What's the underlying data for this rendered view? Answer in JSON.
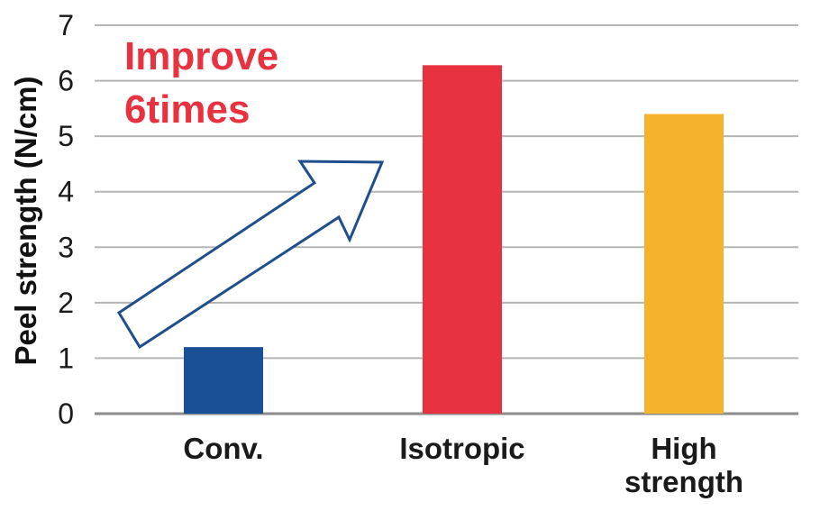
{
  "chart_data": {
    "type": "bar",
    "categories": [
      {
        "lines": [
          "Conv."
        ]
      },
      {
        "lines": [
          "Isotropic"
        ]
      },
      {
        "lines": [
          "High",
          "strength"
        ]
      }
    ],
    "values": [
      1.2,
      6.28,
      5.4
    ],
    "colors": [
      "#1a5096",
      "#e8323f",
      "#f5b22d"
    ],
    "ylabel": "Peel strength (N/cm)",
    "ylim": [
      0,
      7
    ],
    "yticks": [
      0,
      1,
      2,
      3,
      4,
      5,
      6,
      7
    ],
    "grid": true,
    "annotation": {
      "lines": [
        "Improve",
        "6times"
      ],
      "color": "#e8323f"
    },
    "arrow": {
      "from_category": "Conv.",
      "to_category": "Isotropic",
      "stroke_color": "#1f4e8c",
      "fill_color": "#ffffff"
    }
  }
}
